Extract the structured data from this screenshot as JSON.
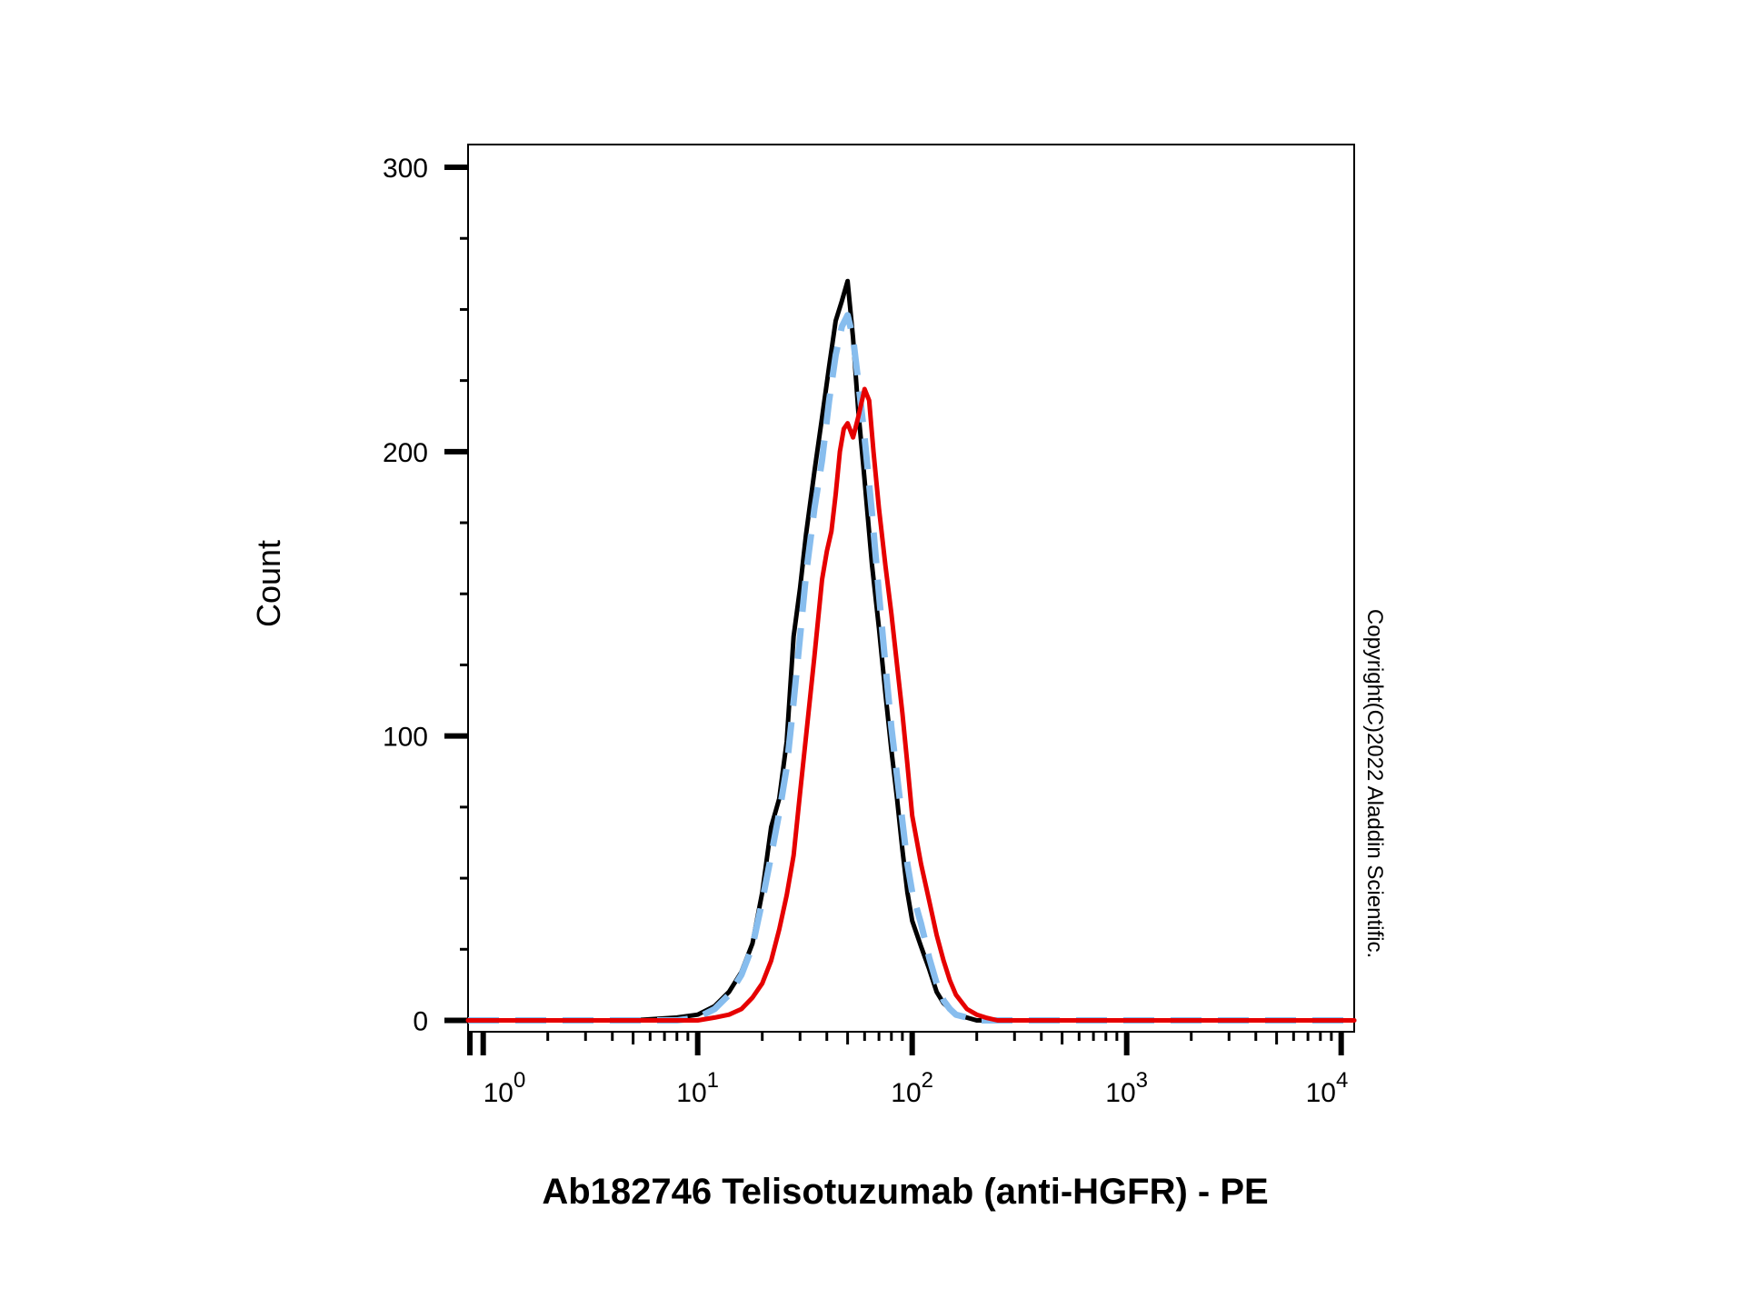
{
  "chart_data": {
    "type": "line",
    "title": "",
    "xlabel": "Ab182746 Telisotuzumab (anti-HGFR) - PE",
    "ylabel": "Count",
    "x_scale": "log",
    "xlim": [
      0.85,
      11500
    ],
    "ylim": [
      -4,
      308
    ],
    "x_ticks": [
      {
        "value": 1,
        "base": "10",
        "exp": "0"
      },
      {
        "value": 10,
        "base": "10",
        "exp": "1"
      },
      {
        "value": 100,
        "base": "10",
        "exp": "2"
      },
      {
        "value": 1000,
        "base": "10",
        "exp": "3"
      },
      {
        "value": 10000,
        "base": "10",
        "exp": "4"
      }
    ],
    "y_ticks": [
      {
        "value": 0,
        "label": "0"
      },
      {
        "value": 100,
        "label": "100"
      },
      {
        "value": 200,
        "label": "200"
      },
      {
        "value": 300,
        "label": "300"
      }
    ],
    "grid": false,
    "legend": "none",
    "annotation": "Copyright(C)2022 Aladdin Scientific.",
    "series": [
      {
        "color": "#000000",
        "style": "solid",
        "x": [
          0.85,
          5,
          8,
          10,
          12,
          14,
          16,
          18,
          20,
          22,
          24,
          26,
          28,
          30,
          32,
          35,
          38,
          41,
          44,
          47,
          50,
          53,
          56,
          60,
          65,
          70,
          75,
          80,
          85,
          90,
          95,
          100,
          110,
          120,
          130,
          140,
          150,
          160,
          180,
          200,
          220,
          250,
          300,
          11500
        ],
        "y": [
          0,
          0,
          1,
          2,
          5,
          10,
          17,
          27,
          45,
          68,
          78,
          98,
          135,
          152,
          171,
          193,
          212,
          230,
          246,
          253,
          260,
          240,
          215,
          190,
          160,
          138,
          115,
          95,
          78,
          60,
          45,
          35,
          26,
          18,
          10,
          6,
          4,
          2,
          1,
          0,
          0,
          0,
          0,
          0
        ]
      },
      {
        "color": "#87bdee",
        "style": "dashed",
        "x": [
          0.85,
          5,
          8,
          10,
          12,
          14,
          16,
          18,
          20,
          22,
          24,
          26,
          28,
          30,
          32,
          35,
          38,
          41,
          44,
          47,
          50,
          53,
          56,
          60,
          65,
          70,
          75,
          80,
          85,
          90,
          95,
          100,
          110,
          120,
          130,
          140,
          150,
          160,
          180,
          200,
          220,
          250,
          300,
          11500
        ],
        "y": [
          0,
          0,
          0,
          1,
          4,
          9,
          16,
          26,
          42,
          58,
          73,
          89,
          112,
          135,
          157,
          180,
          197,
          218,
          234,
          244,
          248,
          240,
          225,
          205,
          178,
          150,
          125,
          103,
          86,
          70,
          55,
          45,
          34,
          22,
          13,
          7,
          4,
          2,
          1,
          0,
          0,
          0,
          0,
          0
        ]
      },
      {
        "color": "#e60000",
        "style": "solid",
        "x": [
          0.85,
          10,
          12,
          14,
          16,
          18,
          20,
          22,
          24,
          26,
          28,
          30,
          32,
          35,
          38,
          40,
          42,
          44,
          46,
          48,
          50,
          53,
          56,
          60,
          63,
          66,
          70,
          75,
          80,
          85,
          90,
          95,
          100,
          110,
          120,
          130,
          140,
          150,
          160,
          180,
          200,
          220,
          250,
          300,
          350,
          400,
          11500
        ],
        "y": [
          0,
          0,
          1,
          2,
          4,
          8,
          13,
          21,
          32,
          44,
          58,
          80,
          100,
          128,
          155,
          165,
          172,
          185,
          200,
          208,
          210,
          205,
          212,
          222,
          218,
          200,
          180,
          160,
          143,
          125,
          108,
          90,
          72,
          55,
          42,
          30,
          21,
          14,
          9,
          4,
          2,
          1,
          0,
          0,
          0,
          0,
          0
        ]
      }
    ]
  }
}
